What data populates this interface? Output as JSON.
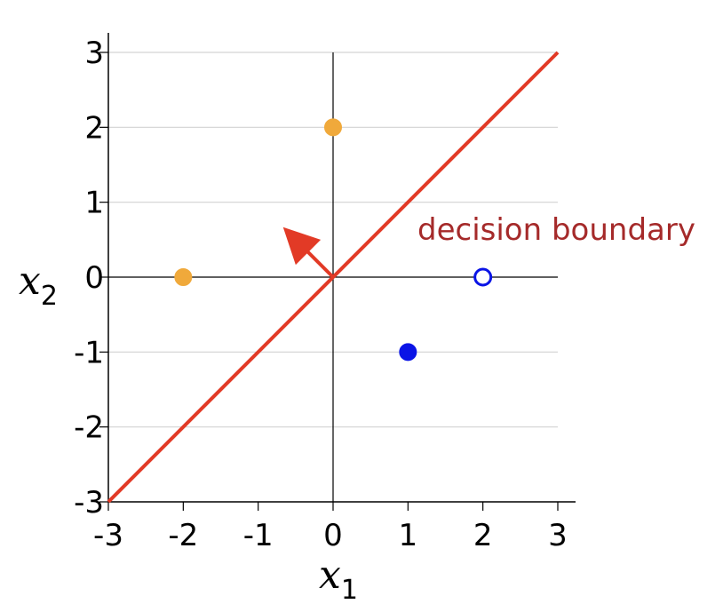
{
  "chart_data": {
    "type": "scatter",
    "title": "",
    "xlabel": {
      "main": "x",
      "sub": "1"
    },
    "ylabel": {
      "main": "x",
      "sub": "2"
    },
    "xlim": [
      -3,
      3
    ],
    "ylim": [
      -3,
      3
    ],
    "x_ticks": [
      -3,
      -2,
      -1,
      0,
      1,
      2,
      3
    ],
    "y_ticks": [
      -3,
      -2,
      -1,
      0,
      1,
      2,
      3
    ],
    "x_tick_labels": [
      "-3",
      "-2",
      "-1",
      "0",
      "1",
      "2",
      "3"
    ],
    "y_tick_labels": [
      "-3",
      "-2",
      "-1",
      "0",
      "1",
      "2",
      "3"
    ],
    "horizontal_grid": true,
    "vertical_grid": false,
    "points": [
      {
        "x": 0,
        "y": 2,
        "color": "#F0A93B",
        "filled": true
      },
      {
        "x": -2,
        "y": 0,
        "color": "#F0A93B",
        "filled": true
      },
      {
        "x": 1,
        "y": -1,
        "color": "#0A14E6",
        "filled": true
      },
      {
        "x": 2,
        "y": 0,
        "color": "#0A14E6",
        "filled": false
      }
    ],
    "decision_boundary": {
      "from": [
        -3,
        -3
      ],
      "to": [
        3,
        3
      ],
      "color": "#E23A26"
    },
    "normal_vector": {
      "from": [
        0,
        0
      ],
      "to": [
        -0.6,
        0.6
      ],
      "color": "#E23A26"
    },
    "annotation": {
      "text": "decision boundary",
      "color": "#A52A2A"
    },
    "colors": {
      "grid": "#D3D3D3",
      "axis": "#000000"
    }
  }
}
